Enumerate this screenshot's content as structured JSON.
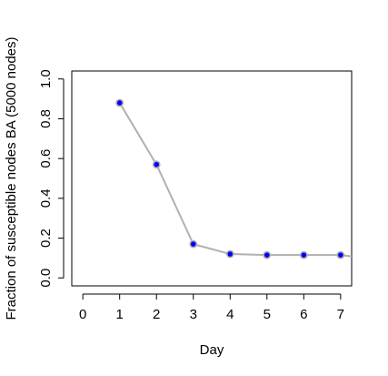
{
  "chart_data": {
    "type": "line",
    "title": "",
    "xlabel": "Day",
    "ylabel": "Fraction of susceptible nodes BA (5000 nodes)",
    "xlim": [
      -0.3,
      7.3
    ],
    "ylim": [
      -0.04,
      1.04
    ],
    "x_ticks": [
      "0",
      "1",
      "2",
      "3",
      "4",
      "5",
      "6",
      "7"
    ],
    "y_ticks": [
      "0.0",
      "0.2",
      "0.4",
      "0.6",
      "0.8",
      "1.0"
    ],
    "grid": false,
    "legend": "none",
    "series": [
      {
        "x": [
          1,
          2,
          3,
          4,
          5,
          6,
          7,
          7.3
        ],
        "y": [
          0.88,
          0.57,
          0.17,
          0.12,
          0.115,
          0.115,
          0.115,
          0.108
        ],
        "line_color": "#b0b0b0",
        "marker_fill": "#0000ff",
        "marker_edge": "#b0b0b0",
        "marker_count": 7
      }
    ]
  }
}
